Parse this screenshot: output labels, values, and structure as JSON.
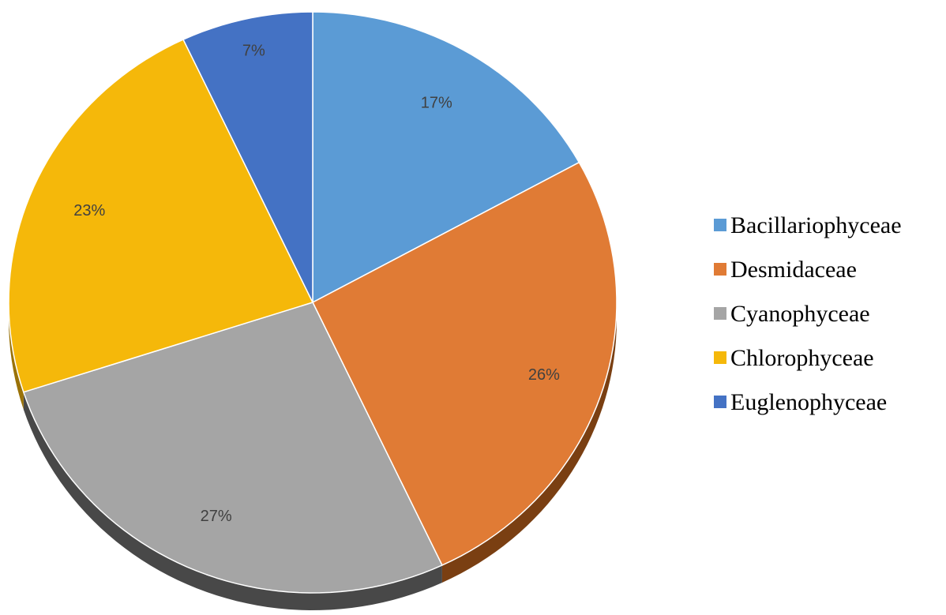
{
  "chart_data": {
    "type": "pie",
    "title": "",
    "style": "3d-tilted",
    "legend_position": "right",
    "start_angle_deg": 0,
    "direction": "clockwise",
    "slices": [
      {
        "name": "Bacillariophyceae",
        "value": 17,
        "label": "17%",
        "color": "#5B9BD5",
        "side_color": "#3A6E9E"
      },
      {
        "name": "Desmidaceae",
        "value": 26,
        "label": "26%",
        "color": "#E07B35",
        "side_color": "#7A3F12"
      },
      {
        "name": "Cyanophyceae",
        "value": 27,
        "label": "27%",
        "color": "#A5A5A5",
        "side_color": "#484848"
      },
      {
        "name": "Chlorophyceae",
        "value": 23,
        "label": "23%",
        "color": "#F5B80A",
        "side_color": "#9A7208"
      },
      {
        "name": "Euglenophyceae",
        "value": 7,
        "label": "7%",
        "color": "#4472C4",
        "side_color": "#2A4A85"
      }
    ]
  }
}
